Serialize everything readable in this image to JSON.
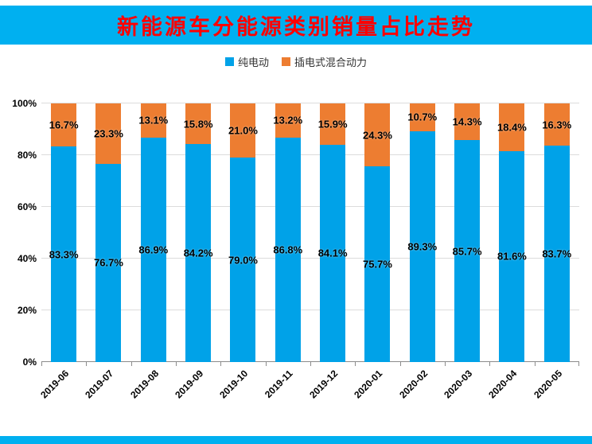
{
  "title": "新能源车分能源类别销量占比走势",
  "colors": {
    "banner": "#00B0F0",
    "title_text": "#FF0000",
    "ev_bar": "#00A2E8",
    "phev_bar": "#ED7D31"
  },
  "legend": {
    "items": [
      {
        "label": "纯电动",
        "color": "#00A2E8"
      },
      {
        "label": "插电式混合动力",
        "color": "#ED7D31"
      }
    ]
  },
  "chart_data": {
    "type": "bar",
    "stacked": true,
    "title": "新能源车分能源类别销量占比走势",
    "xlabel": "",
    "ylabel": "",
    "ylim": [
      0,
      100
    ],
    "grid": true,
    "legend_position": "top-center",
    "yticks": [
      "0%",
      "20%",
      "40%",
      "60%",
      "80%",
      "100%"
    ],
    "categories": [
      "2019-06",
      "2019-07",
      "2019-08",
      "2019-09",
      "2019-10",
      "2019-11",
      "2019-12",
      "2020-01",
      "2020-02",
      "2020-03",
      "2020-04",
      "2020-05"
    ],
    "series": [
      {
        "name": "纯电动",
        "color": "#00A2E8",
        "values": [
          83.3,
          76.7,
          86.9,
          84.2,
          79.0,
          86.8,
          84.1,
          75.7,
          89.3,
          85.7,
          81.6,
          83.7
        ]
      },
      {
        "name": "插电式混合动力",
        "color": "#ED7D31",
        "values": [
          16.7,
          23.3,
          13.1,
          15.8,
          21.0,
          13.2,
          15.9,
          24.3,
          10.7,
          14.3,
          18.4,
          16.3
        ]
      }
    ]
  }
}
